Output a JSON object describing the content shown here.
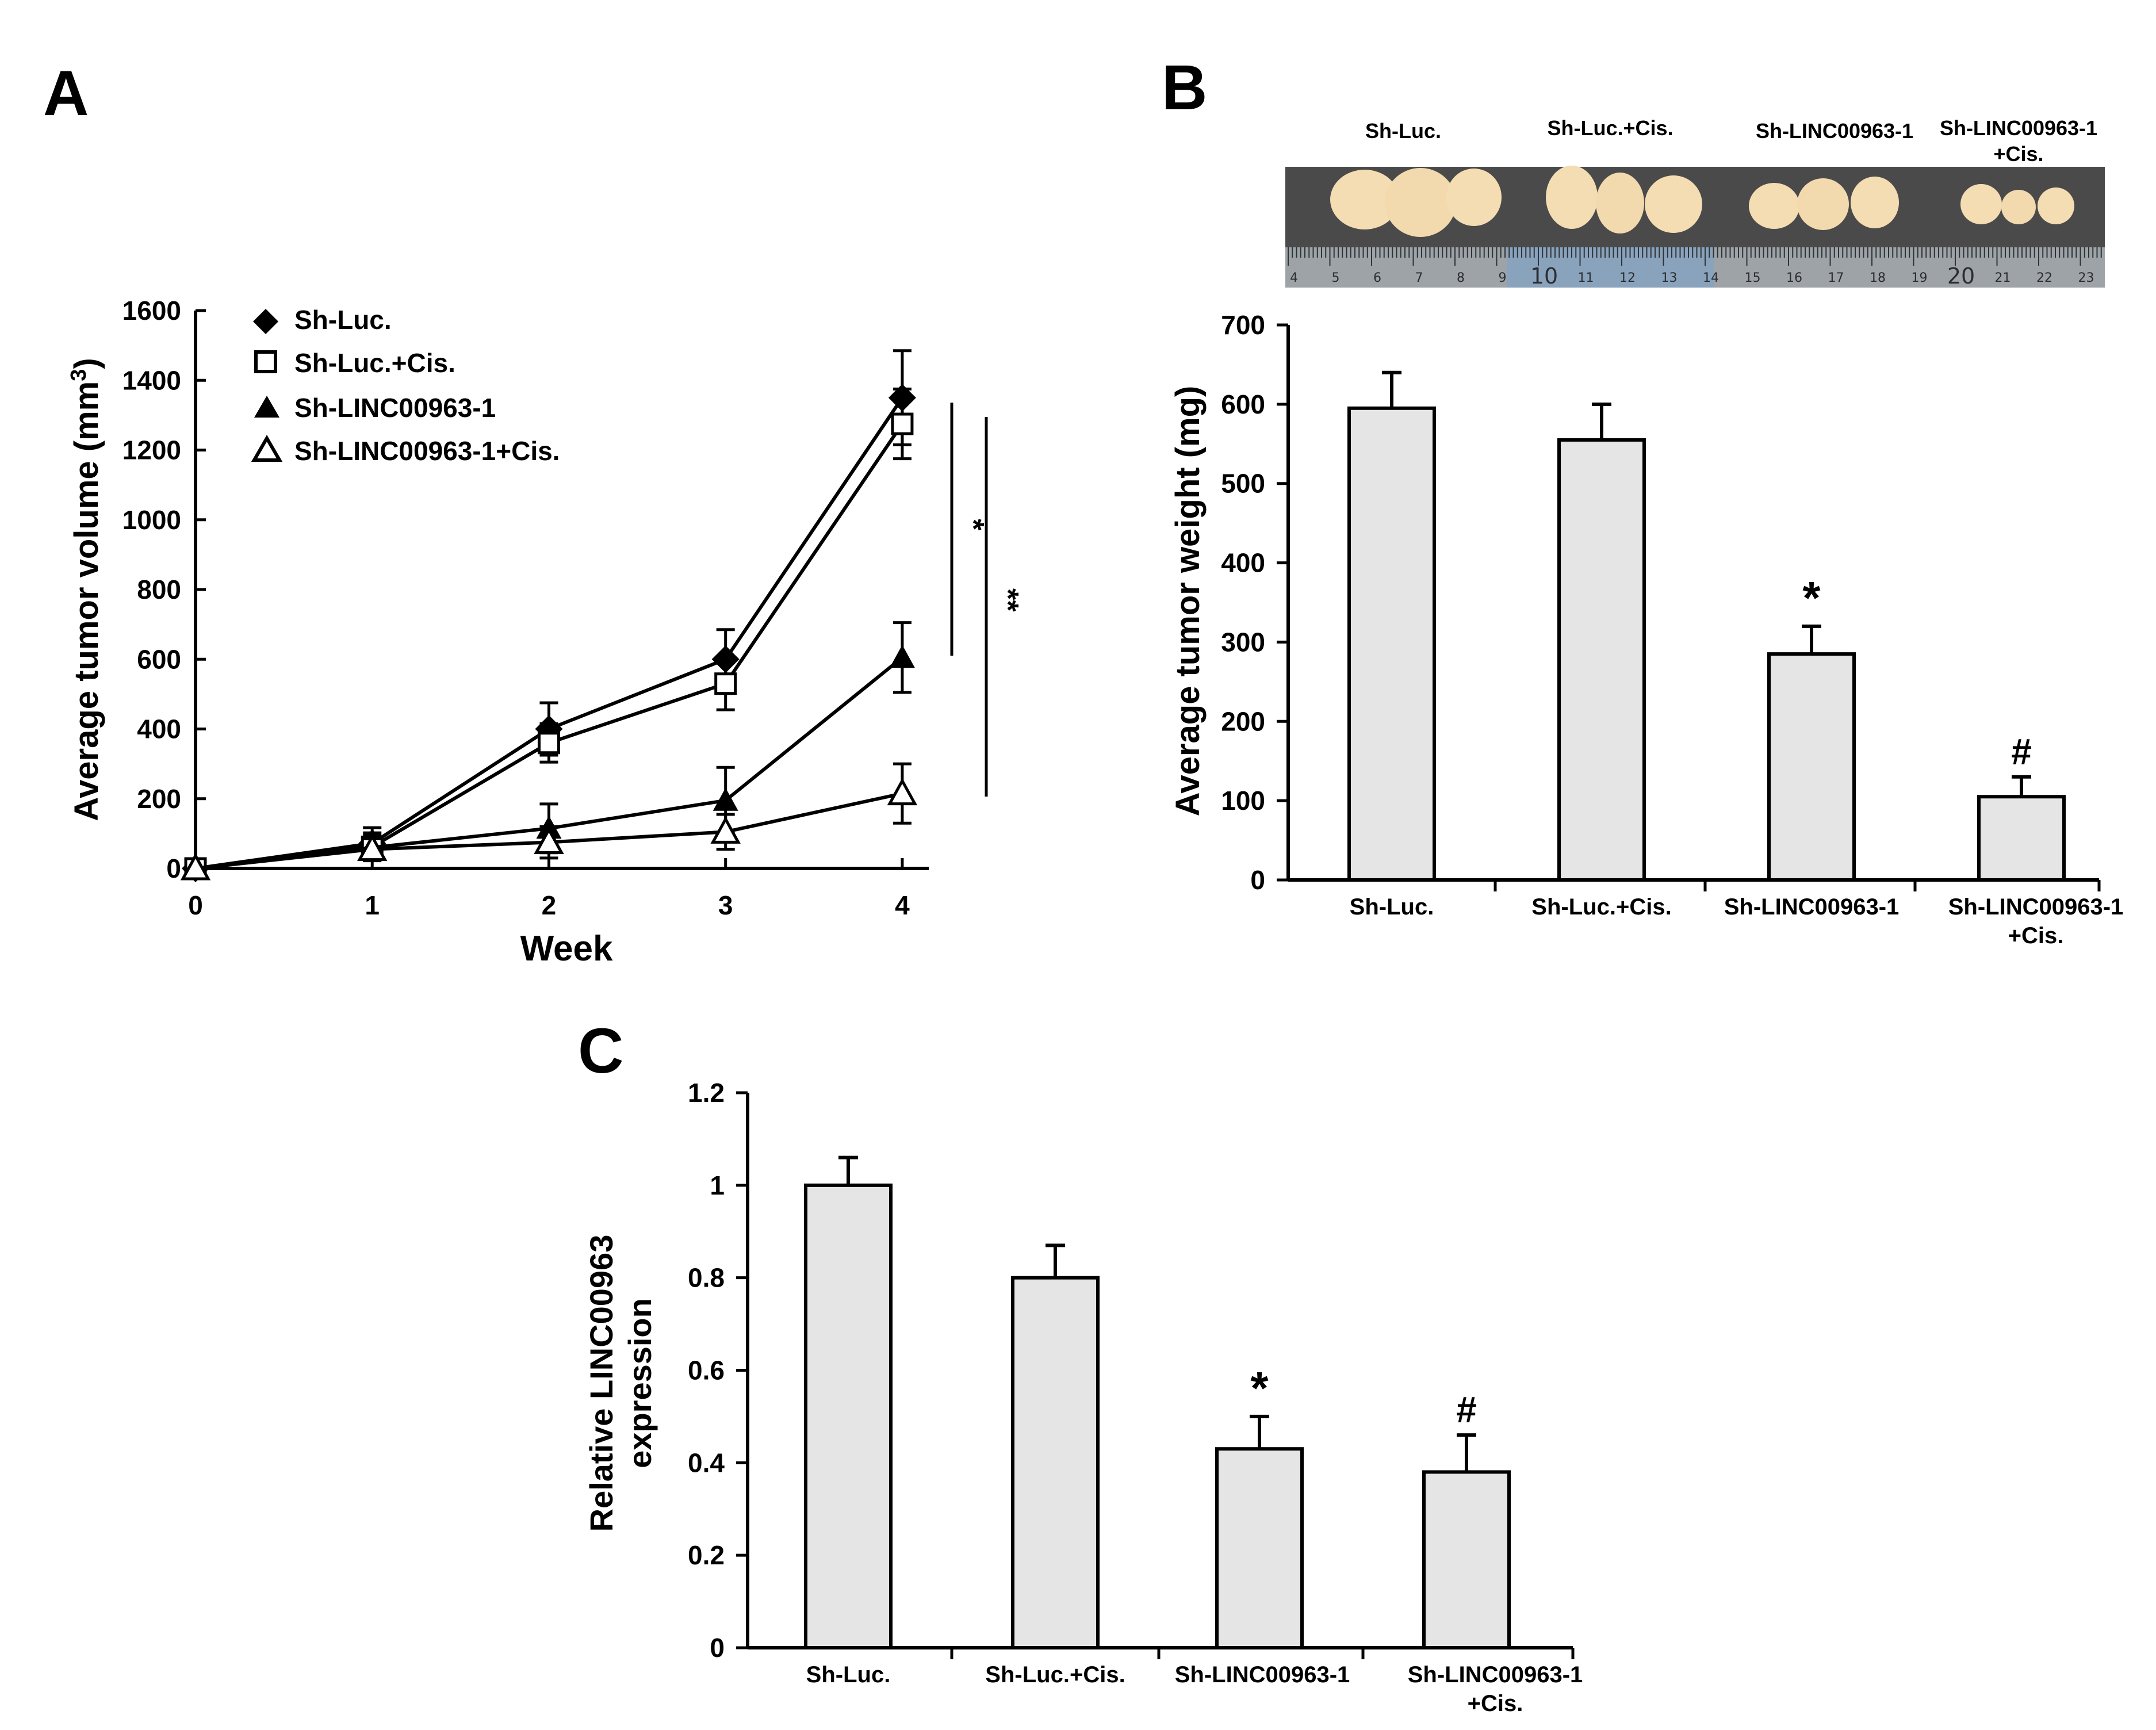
{
  "colors": {
    "bar_fill": "#e5e5e5",
    "ink": "#000000",
    "photo_bg": "#4a4a4a",
    "ruler": "#9ea3a8",
    "ruler_blue": "#8aa3bd",
    "tumor": "#f4dcb3"
  },
  "panel_labels": {
    "a": "A",
    "b": "B",
    "c": "C"
  },
  "chart_data": [
    {
      "id": "A",
      "type": "line",
      "title": "",
      "xlabel": "Week",
      "ylabel_main": "Average tumor volume (mm",
      "ylabel_sup": "3",
      "ylabel_close": ")",
      "x": [
        0,
        1,
        2,
        3,
        4
      ],
      "xlim": [
        0,
        4
      ],
      "ylim": [
        0,
        1600
      ],
      "yticks": [
        0,
        200,
        400,
        600,
        800,
        1000,
        1200,
        1400,
        1600
      ],
      "xticks": [
        0,
        1,
        2,
        3,
        4
      ],
      "legend_position": "top-left",
      "series": [
        {
          "name": "Sh-Luc.",
          "marker": "filled-diamond",
          "values": [
            0,
            72,
            400,
            600,
            1350
          ],
          "errors": [
            0,
            45,
            75,
            85,
            135
          ]
        },
        {
          "name": "Sh-Luc.+Cis.",
          "marker": "open-square",
          "values": [
            0,
            62,
            360,
            530,
            1275
          ],
          "errors": [
            0,
            40,
            55,
            75,
            100
          ]
        },
        {
          "name": "Sh-LINC00963-1",
          "marker": "filled-triangle",
          "values": [
            0,
            60,
            115,
            195,
            605
          ],
          "errors": [
            0,
            35,
            70,
            95,
            100
          ]
        },
        {
          "name": "Sh-LINC00963-1+Cis.",
          "marker": "open-triangle",
          "values": [
            0,
            55,
            75,
            105,
            215
          ],
          "errors": [
            0,
            30,
            45,
            50,
            85
          ]
        }
      ],
      "annotations": [
        "*",
        "**"
      ]
    },
    {
      "id": "B",
      "type": "bar",
      "title": "",
      "xlabel": "",
      "ylabel": "Average tumor weight (mg)",
      "categories": [
        {
          "line1": "Sh-Luc.",
          "line2": ""
        },
        {
          "line1": "Sh-Luc.+Cis.",
          "line2": ""
        },
        {
          "line1": "Sh-LINC00963-1",
          "line2": ""
        },
        {
          "line1": "Sh-LINC00963-1",
          "line2": "+Cis."
        }
      ],
      "values": [
        595,
        555,
        285,
        105
      ],
      "errors": [
        45,
        45,
        35,
        25
      ],
      "ylim": [
        0,
        700
      ],
      "yticks": [
        0,
        100,
        200,
        300,
        400,
        500,
        600,
        700
      ],
      "markers": [
        "",
        "",
        "*",
        "#"
      ]
    },
    {
      "id": "C",
      "type": "bar",
      "title": "",
      "xlabel": "",
      "ylabel_line1": "Relative LINC00963",
      "ylabel_line2": "expression",
      "categories": [
        {
          "line1": "Sh-Luc.",
          "line2": ""
        },
        {
          "line1": "Sh-Luc.+Cis.",
          "line2": ""
        },
        {
          "line1": "Sh-LINC00963-1",
          "line2": ""
        },
        {
          "line1": "Sh-LINC00963-1",
          "line2": "+Cis."
        }
      ],
      "values": [
        1.0,
        0.8,
        0.43,
        0.38
      ],
      "errors": [
        0.06,
        0.07,
        0.07,
        0.08
      ],
      "ylim": [
        0,
        1.2
      ],
      "yticks": [
        0,
        0.2,
        0.4,
        0.6,
        0.8,
        1,
        1.2
      ],
      "markers": [
        "",
        "",
        "*",
        "#"
      ]
    }
  ],
  "photo": {
    "group_labels": [
      {
        "line1": "Sh-Luc.",
        "line2": ""
      },
      {
        "line1": "Sh-Luc.+Cis.",
        "line2": ""
      },
      {
        "line1": "Sh-LINC00963-1",
        "line2": ""
      },
      {
        "line1": "Sh-LINC00963-1",
        "line2": "+Cis."
      }
    ],
    "ruler_numbers": [
      "4",
      "5",
      "6",
      "7",
      "8",
      "9",
      "10",
      "11",
      "12",
      "13",
      "14",
      "15",
      "16",
      "17",
      "18",
      "19",
      "20",
      "21",
      "22",
      "23"
    ]
  }
}
